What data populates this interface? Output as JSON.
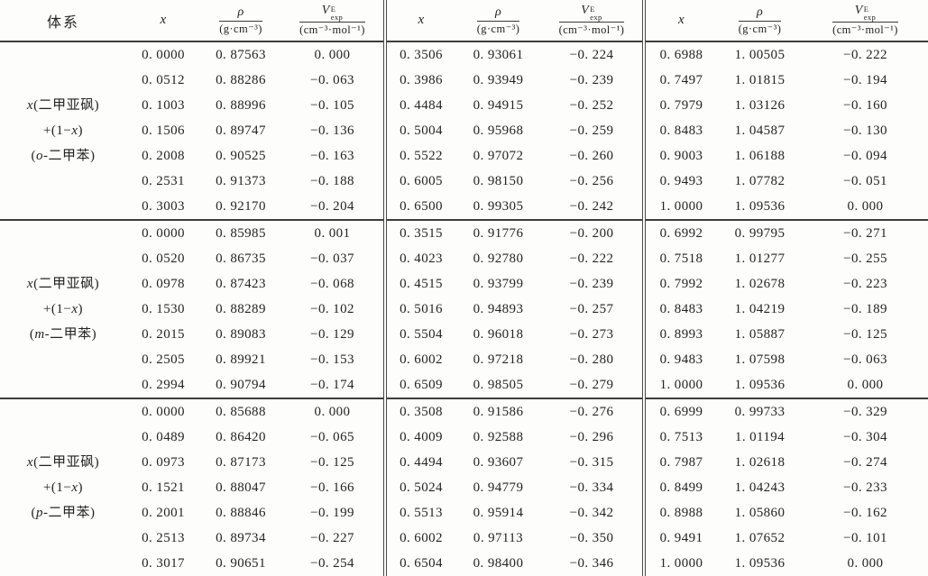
{
  "table": {
    "headers": {
      "system": "体系",
      "x": "x",
      "rho": "ρ",
      "rho_unit": "(g·cm⁻³)",
      "v": "V",
      "v_sup": "E",
      "v_sub": "exp",
      "v_unit": "(cm⁻³·mol⁻¹)"
    },
    "groups": [
      {
        "system": [
          "x(二甲亚砜)",
          "+(1−x)",
          "(o-二甲苯)"
        ],
        "blocks": [
          [
            [
              "0. 0000",
              "0. 87563",
              "0. 000"
            ],
            [
              "0. 0512",
              "0. 88286",
              "−0. 063"
            ],
            [
              "0. 1003",
              "0. 88996",
              "−0. 105"
            ],
            [
              "0. 1506",
              "0. 89747",
              "−0. 136"
            ],
            [
              "0. 2008",
              "0. 90525",
              "−0. 163"
            ],
            [
              "0. 2531",
              "0. 91373",
              "−0. 188"
            ],
            [
              "0. 3003",
              "0. 92170",
              "−0. 204"
            ]
          ],
          [
            [
              "0. 3506",
              "0. 93061",
              "−0. 224"
            ],
            [
              "0. 3986",
              "0. 93949",
              "−0. 239"
            ],
            [
              "0. 4484",
              "0. 94915",
              "−0. 252"
            ],
            [
              "0. 5004",
              "0. 95968",
              "−0. 259"
            ],
            [
              "0. 5522",
              "0. 97072",
              "−0. 260"
            ],
            [
              "0. 6005",
              "0. 98150",
              "−0. 256"
            ],
            [
              "0. 6500",
              "0. 99305",
              "−0. 242"
            ]
          ],
          [
            [
              "0. 6988",
              "1. 00505",
              "−0. 222"
            ],
            [
              "0. 7497",
              "1. 01815",
              "−0. 194"
            ],
            [
              "0. 7979",
              "1. 03126",
              "−0. 160"
            ],
            [
              "0. 8483",
              "1. 04587",
              "−0. 130"
            ],
            [
              "0. 9003",
              "1. 06188",
              "−0. 094"
            ],
            [
              "0. 9493",
              "1. 07782",
              "−0. 051"
            ],
            [
              "1. 0000",
              "1. 09536",
              "0. 000"
            ]
          ]
        ]
      },
      {
        "system": [
          "x(二甲亚砜)",
          "+(1−x)",
          "(m-二甲苯)"
        ],
        "blocks": [
          [
            [
              "0. 0000",
              "0. 85985",
              "0. 001"
            ],
            [
              "0. 0520",
              "0. 86735",
              "−0. 037"
            ],
            [
              "0. 0978",
              "0. 87423",
              "−0. 068"
            ],
            [
              "0. 1530",
              "0. 88289",
              "−0. 102"
            ],
            [
              "0. 2015",
              "0. 89083",
              "−0. 129"
            ],
            [
              "0. 2505",
              "0. 89921",
              "−0. 153"
            ],
            [
              "0. 2994",
              "0. 90794",
              "−0. 174"
            ]
          ],
          [
            [
              "0. 3515",
              "0. 91776",
              "−0. 200"
            ],
            [
              "0. 4023",
              "0. 92780",
              "−0. 222"
            ],
            [
              "0. 4515",
              "0. 93799",
              "−0. 239"
            ],
            [
              "0. 5016",
              "0. 94893",
              "−0. 257"
            ],
            [
              "0. 5504",
              "0. 96018",
              "−0. 273"
            ],
            [
              "0. 6002",
              "0. 97218",
              "−0. 280"
            ],
            [
              "0. 6509",
              "0. 98505",
              "−0. 279"
            ]
          ],
          [
            [
              "0. 6992",
              "0. 99795",
              "−0. 271"
            ],
            [
              "0. 7518",
              "1. 01277",
              "−0. 255"
            ],
            [
              "0. 7992",
              "1. 02678",
              "−0. 223"
            ],
            [
              "0. 8483",
              "1. 04219",
              "−0. 189"
            ],
            [
              "0. 8993",
              "1. 05887",
              "−0. 125"
            ],
            [
              "0. 9483",
              "1. 07598",
              "−0. 063"
            ],
            [
              "1. 0000",
              "1. 09536",
              "0. 000"
            ]
          ]
        ]
      },
      {
        "system": [
          "x(二甲亚砜)",
          "+(1−x)",
          "(p-二甲苯)"
        ],
        "blocks": [
          [
            [
              "0. 0000",
              "0. 85688",
              "0. 000"
            ],
            [
              "0. 0489",
              "0. 86420",
              "−0. 065"
            ],
            [
              "0. 0973",
              "0. 87173",
              "−0. 125"
            ],
            [
              "0. 1521",
              "0. 88047",
              "−0. 166"
            ],
            [
              "0. 2001",
              "0. 88846",
              "−0. 199"
            ],
            [
              "0. 2513",
              "0. 89734",
              "−0. 227"
            ],
            [
              "0. 3017",
              "0. 90651",
              "−0. 254"
            ]
          ],
          [
            [
              "0. 3508",
              "0. 91586",
              "−0. 276"
            ],
            [
              "0. 4009",
              "0. 92588",
              "−0. 296"
            ],
            [
              "0. 4494",
              "0. 93607",
              "−0. 315"
            ],
            [
              "0. 5024",
              "0. 94779",
              "−0. 334"
            ],
            [
              "0. 5513",
              "0. 95914",
              "−0. 342"
            ],
            [
              "0. 6002",
              "0. 97113",
              "−0. 350"
            ],
            [
              "0. 6504",
              "0. 98400",
              "−0. 346"
            ]
          ],
          [
            [
              "0. 6999",
              "0. 99733",
              "−0. 329"
            ],
            [
              "0. 7513",
              "1. 01194",
              "−0. 304"
            ],
            [
              "0. 7987",
              "1. 02618",
              "−0. 274"
            ],
            [
              "0. 8499",
              "1. 04243",
              "−0. 233"
            ],
            [
              "0. 8988",
              "1. 05860",
              "−0. 162"
            ],
            [
              "0. 9491",
              "1. 07652",
              "−0. 101"
            ],
            [
              "1. 0000",
              "1. 09536",
              "0. 000"
            ]
          ]
        ]
      }
    ]
  }
}
